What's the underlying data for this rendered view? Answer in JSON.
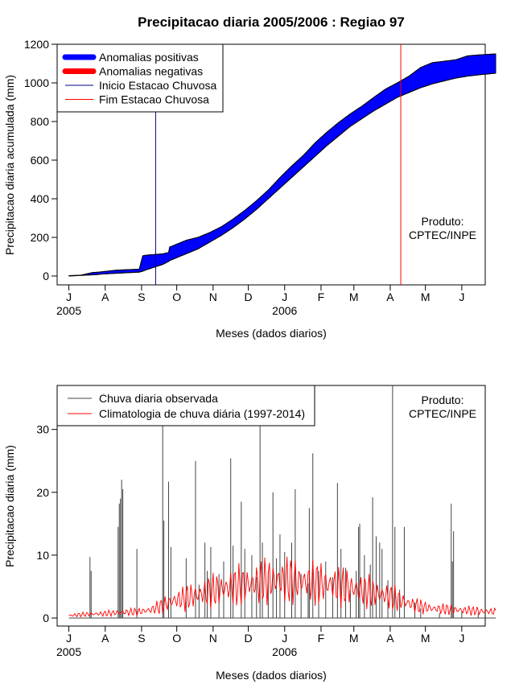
{
  "chart_data": [
    {
      "type": "area",
      "title": "Precipitacao diaria 2005/2006 : Regiao 97",
      "xlabel": "Meses (dados diarios)",
      "ylabel": "Precipitacao diaria acumulada (mm)",
      "ylim": [
        0,
        1200
      ],
      "yticks": [
        "0",
        "200",
        "400",
        "600",
        "800",
        "1000",
        "1200"
      ],
      "xlim": [
        -10,
        355
      ],
      "xticks": [
        {
          "day": 0,
          "label": "J"
        },
        {
          "day": 31,
          "label": "A"
        },
        {
          "day": 62,
          "label": "S"
        },
        {
          "day": 92,
          "label": "O"
        },
        {
          "day": 123,
          "label": "N"
        },
        {
          "day": 153,
          "label": "D"
        },
        {
          "day": 184,
          "label": "J"
        },
        {
          "day": 215,
          "label": "F"
        },
        {
          "day": 243,
          "label": "M"
        },
        {
          "day": 274,
          "label": "A"
        },
        {
          "day": 304,
          "label": "M"
        },
        {
          "day": 335,
          "label": "J"
        }
      ],
      "year_labels": [
        {
          "day": 0,
          "label": "2005"
        },
        {
          "day": 184,
          "label": "2006"
        }
      ],
      "x_day": [
        0,
        10,
        20,
        25,
        28,
        40,
        50,
        60,
        63,
        66,
        70,
        80,
        85,
        86,
        90,
        100,
        110,
        120,
        130,
        140,
        150,
        160,
        170,
        180,
        190,
        200,
        210,
        220,
        230,
        240,
        250,
        260,
        270,
        280,
        290,
        300,
        310,
        320,
        330,
        340,
        350,
        364
      ],
      "observed_cum": [
        2,
        4,
        18,
        20,
        22,
        30,
        33,
        35,
        105,
        108,
        110,
        115,
        122,
        150,
        160,
        185,
        200,
        225,
        255,
        295,
        340,
        390,
        445,
        510,
        570,
        625,
        690,
        745,
        795,
        840,
        880,
        925,
        968,
        1000,
        1035,
        1080,
        1105,
        1112,
        1120,
        1140,
        1145,
        1150
      ],
      "climatology_cum": [
        0,
        3,
        6,
        8,
        10,
        14,
        17,
        20,
        25,
        32,
        40,
        60,
        75,
        80,
        90,
        115,
        140,
        175,
        210,
        250,
        295,
        345,
        400,
        455,
        510,
        565,
        620,
        675,
        725,
        775,
        815,
        855,
        890,
        925,
        950,
        975,
        995,
        1010,
        1025,
        1035,
        1042,
        1050
      ],
      "legend": [
        {
          "label": "Anomalias positivas",
          "color": "#0000ff",
          "kind": "thick"
        },
        {
          "label": "Anomalias negativas",
          "color": "#ff0000",
          "kind": "thick"
        },
        {
          "label": "Inicio Estacao Chuvosa",
          "color": "#00008b",
          "kind": "thin"
        },
        {
          "label": "Fim Estacao Chuvosa",
          "color": "#ff0000",
          "kind": "thin"
        }
      ],
      "season_start_day": 74,
      "season_end_day": 283,
      "annotation": [
        "Produto:",
        "CPTEC/INPE"
      ],
      "colors": {
        "positive": "#0000ff",
        "negative": "#ff0000",
        "start": "#00008b",
        "end": "#ff0000"
      }
    },
    {
      "type": "bar",
      "xlabel": "Meses (dados diarios)",
      "ylabel": "Precipitacao diaria (mm)",
      "ylim": [
        0,
        37
      ],
      "yticks": [
        "0",
        "10",
        "20",
        "30"
      ],
      "legend": [
        {
          "label": "Chuva diaria observada",
          "color": "#444444"
        },
        {
          "label": "Climatologia de chuva diária (1997-2014)",
          "color": "#ff0000"
        }
      ],
      "annotation": [
        "Produto:",
        "CPTEC/INPE"
      ],
      "observed_daily": [
        {
          "day": 18,
          "value": 9.7
        },
        {
          "day": 19,
          "value": 7.5
        },
        {
          "day": 42,
          "value": 14.5
        },
        {
          "day": 43,
          "value": 18.2
        },
        {
          "day": 44,
          "value": 19
        },
        {
          "day": 45,
          "value": 22
        },
        {
          "day": 46,
          "value": 20.5
        },
        {
          "day": 58,
          "value": 11
        },
        {
          "day": 80,
          "value": 36
        },
        {
          "day": 81,
          "value": 15.5
        },
        {
          "day": 85,
          "value": 21.7
        },
        {
          "day": 87,
          "value": 11.3
        },
        {
          "day": 100,
          "value": 9.5
        },
        {
          "day": 108,
          "value": 25
        },
        {
          "day": 111,
          "value": 5.3
        },
        {
          "day": 116,
          "value": 12
        },
        {
          "day": 118,
          "value": 7.5
        },
        {
          "day": 121,
          "value": 11.3
        },
        {
          "day": 128,
          "value": 7
        },
        {
          "day": 132,
          "value": 9
        },
        {
          "day": 138,
          "value": 25.4
        },
        {
          "day": 140,
          "value": 11.5
        },
        {
          "day": 147,
          "value": 18.5
        },
        {
          "day": 150,
          "value": 11
        },
        {
          "day": 156,
          "value": 10
        },
        {
          "day": 160,
          "value": 6.5
        },
        {
          "day": 163,
          "value": 31.7
        },
        {
          "day": 165,
          "value": 12
        },
        {
          "day": 170,
          "value": 7.5
        },
        {
          "day": 174,
          "value": 20
        },
        {
          "day": 177,
          "value": 9.5
        },
        {
          "day": 180,
          "value": 13.3
        },
        {
          "day": 184,
          "value": 10.5
        },
        {
          "day": 190,
          "value": 12
        },
        {
          "day": 193,
          "value": 20.5
        },
        {
          "day": 198,
          "value": 7
        },
        {
          "day": 204,
          "value": 5.5
        },
        {
          "day": 205,
          "value": 17.5
        },
        {
          "day": 208,
          "value": 26.2
        },
        {
          "day": 213,
          "value": 7.5
        },
        {
          "day": 219,
          "value": 9
        },
        {
          "day": 225,
          "value": 6.5
        },
        {
          "day": 229,
          "value": 21.5
        },
        {
          "day": 232,
          "value": 11
        },
        {
          "day": 236,
          "value": 8
        },
        {
          "day": 240,
          "value": 4.5
        },
        {
          "day": 245,
          "value": 7.5
        },
        {
          "day": 247,
          "value": 14.5
        },
        {
          "day": 248,
          "value": 15
        },
        {
          "day": 252,
          "value": 10
        },
        {
          "day": 257,
          "value": 8.5
        },
        {
          "day": 259,
          "value": 19.2
        },
        {
          "day": 262,
          "value": 13
        },
        {
          "day": 265,
          "value": 12
        },
        {
          "day": 267,
          "value": 11
        },
        {
          "day": 272,
          "value": 6
        },
        {
          "day": 276,
          "value": 37
        },
        {
          "day": 278,
          "value": 14.5
        },
        {
          "day": 282,
          "value": 4.5
        },
        {
          "day": 286,
          "value": 14.5
        },
        {
          "day": 295,
          "value": 2.5
        },
        {
          "day": 300,
          "value": 1.5
        },
        {
          "day": 316,
          "value": 0.8
        },
        {
          "day": 326,
          "value": 18.2
        },
        {
          "day": 327,
          "value": 9
        },
        {
          "day": 328,
          "value": 13.8
        },
        {
          "day": 335,
          "value": 1
        },
        {
          "day": 349,
          "value": 0.8
        }
      ],
      "climatology_daily": {
        "days": [
          0,
          15,
          30,
          45,
          60,
          70,
          80,
          90,
          100,
          110,
          120,
          130,
          140,
          150,
          160,
          170,
          180,
          190,
          200,
          210,
          220,
          230,
          240,
          250,
          260,
          270,
          280,
          290,
          300,
          310,
          320,
          330,
          340,
          350,
          364
        ],
        "values": [
          0.4,
          0.6,
          0.7,
          0.9,
          1.0,
          1.3,
          2.0,
          2.8,
          3.2,
          3.7,
          4.2,
          4.6,
          5.0,
          5.3,
          5.6,
          5.9,
          6.0,
          5.9,
          5.8,
          5.6,
          5.4,
          5.1,
          4.8,
          4.4,
          4.0,
          3.6,
          3.0,
          2.3,
          1.8,
          1.5,
          1.4,
          1.3,
          1.2,
          1.1,
          1.0
        ]
      }
    }
  ]
}
